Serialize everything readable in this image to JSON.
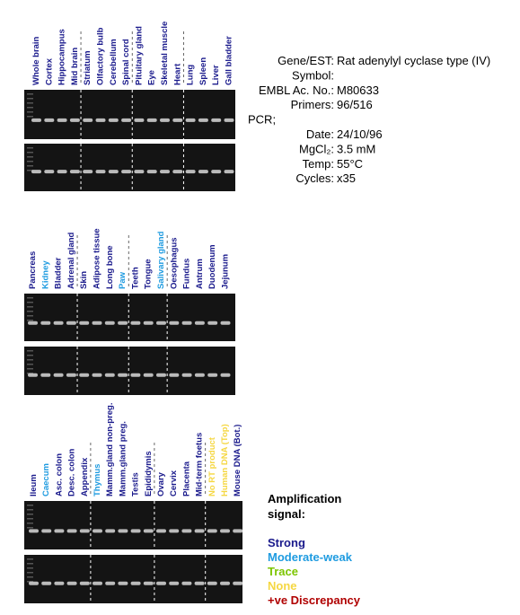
{
  "panels": [
    {
      "lanes": [
        {
          "label": "Whole brain",
          "color": "#1a1a8c"
        },
        {
          "label": "Cortex",
          "color": "#1a1a8c"
        },
        {
          "label": "Hippocampus",
          "color": "#1a1a8c"
        },
        {
          "label": "Mid brain",
          "color": "#1a1a8c"
        },
        {
          "label": "Striatum",
          "color": "#1a1a8c"
        },
        {
          "label": "Olfactory bulb",
          "color": "#1a1a8c"
        },
        {
          "label": "Cerebellum",
          "color": "#1a1a8c"
        },
        {
          "label": "Spinal cord",
          "color": "#1a1a8c"
        },
        {
          "label": "Pituitary gland",
          "color": "#1a1a8c"
        },
        {
          "label": "Eye",
          "color": "#1a1a8c"
        },
        {
          "label": "Skeletal muscle",
          "color": "#1a1a8c"
        },
        {
          "label": "Heart",
          "color": "#1a1a8c"
        },
        {
          "label": "Lung",
          "color": "#1a1a8c"
        },
        {
          "label": "Spleen",
          "color": "#1a1a8c"
        },
        {
          "label": "Liver",
          "color": "#1a1a8c"
        },
        {
          "label": "Gall bladder",
          "color": "#1a1a8c"
        }
      ]
    },
    {
      "lanes": [
        {
          "label": "Pancreas",
          "color": "#1a1a8c"
        },
        {
          "label": "Kidney",
          "color": "#1e9be0"
        },
        {
          "label": "Bladder",
          "color": "#1a1a8c"
        },
        {
          "label": "Adrenal gland",
          "color": "#1a1a8c"
        },
        {
          "label": "Skin",
          "color": "#1a1a8c"
        },
        {
          "label": "Adipose tissue",
          "color": "#1a1a8c"
        },
        {
          "label": "Long bone",
          "color": "#1a1a8c"
        },
        {
          "label": "Paw",
          "color": "#1e9be0"
        },
        {
          "label": "Teeth",
          "color": "#1a1a8c"
        },
        {
          "label": "Tongue",
          "color": "#1a1a8c"
        },
        {
          "label": "Salivary gland",
          "color": "#1e9be0"
        },
        {
          "label": "Oesophagus",
          "color": "#1a1a8c"
        },
        {
          "label": "Fundus",
          "color": "#1a1a8c"
        },
        {
          "label": "Antrum",
          "color": "#1a1a8c"
        },
        {
          "label": "Duodenum",
          "color": "#1a1a8c"
        },
        {
          "label": "Jejunum",
          "color": "#1a1a8c"
        }
      ]
    },
    {
      "lanes": [
        {
          "label": "Ileum",
          "color": "#1a1a8c"
        },
        {
          "label": "Caecum",
          "color": "#1e9be0"
        },
        {
          "label": "Asc. colon",
          "color": "#1a1a8c"
        },
        {
          "label": "Desc. colon",
          "color": "#1a1a8c"
        },
        {
          "label": "Appendix",
          "color": "#1a1a8c"
        },
        {
          "label": "Thymus",
          "color": "#1e9be0"
        },
        {
          "label": "Mamm.gland non-preg.",
          "color": "#1a1a8c"
        },
        {
          "label": "Mamm.gland preg.",
          "color": "#1a1a8c"
        },
        {
          "label": "Testis",
          "color": "#1a1a8c"
        },
        {
          "label": "Epididymis",
          "color": "#1a1a8c"
        },
        {
          "label": "Ovary",
          "color": "#1a1a8c"
        },
        {
          "label": "Cervix",
          "color": "#1a1a8c"
        },
        {
          "label": "Placenta",
          "color": "#1a1a8c"
        },
        {
          "label": "Mid-term foetus",
          "color": "#1a1a8c"
        },
        {
          "label": "No RT product",
          "color": "#f5d742"
        },
        {
          "label": "Human DNA (Top)",
          "color": "#f5d742"
        },
        {
          "label": "Mouse DNA (Bot.)",
          "color": "#1a1a8c"
        }
      ]
    }
  ],
  "info": [
    {
      "label": "Gene/EST:",
      "value": "Rat adenylyl cyclase type (IV)"
    },
    {
      "label": "Symbol:",
      "value": ""
    },
    {
      "label": "EMBL Ac. No.:",
      "value": "M80633"
    },
    {
      "label": "Primers:",
      "value": "96/516"
    },
    {
      "label": "PCR;",
      "value": ""
    },
    {
      "label": "Date:",
      "value": "24/10/96"
    },
    {
      "label": "MgCl₂:",
      "value": "3.5 mM"
    },
    {
      "label": "Temp:",
      "value": "55°C"
    },
    {
      "label": "Cycles:",
      "value": "x35"
    }
  ],
  "legend": {
    "title": "Amplification signal:",
    "items": [
      {
        "label": "Strong",
        "color": "#1a1a8c"
      },
      {
        "label": "Moderate-weak",
        "color": "#1e9be0"
      },
      {
        "label": "Trace",
        "color": "#7cc500"
      },
      {
        "label": "None",
        "color": "#f5d742"
      },
      {
        "label": "+ve Discrepancy",
        "color": "#b00000"
      }
    ]
  }
}
